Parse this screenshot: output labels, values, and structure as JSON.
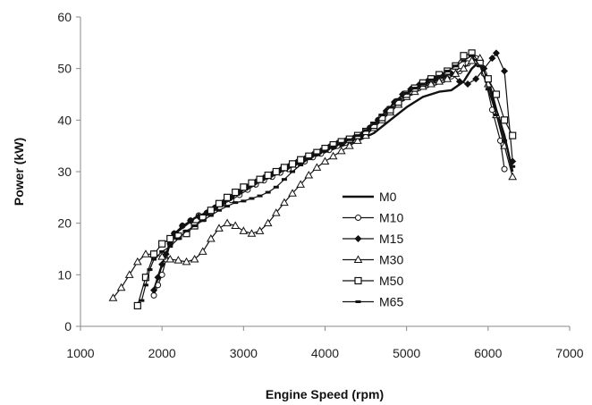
{
  "chart_data": {
    "type": "line",
    "title": "",
    "xlabel": "Engine Speed (rpm)",
    "ylabel": "Power  (kW)",
    "xlim": [
      1000,
      7000
    ],
    "ylim": [
      0,
      60
    ],
    "xticks": [
      1000,
      2000,
      3000,
      4000,
      5000,
      6000,
      7000
    ],
    "yticks": [
      0,
      10,
      20,
      30,
      40,
      50,
      60
    ],
    "grid": false,
    "legend_position": "center",
    "series": [
      {
        "name": "M0",
        "marker": "none",
        "points": [
          [
            1900,
            7
          ],
          [
            2000,
            12
          ],
          [
            2100,
            16
          ],
          [
            2200,
            18.5
          ],
          [
            2400,
            21
          ],
          [
            2600,
            22.5
          ],
          [
            2800,
            24.5
          ],
          [
            3000,
            26.5
          ],
          [
            3200,
            28
          ],
          [
            3400,
            29.5
          ],
          [
            3600,
            31
          ],
          [
            3800,
            32.5
          ],
          [
            4000,
            33.8
          ],
          [
            4200,
            35
          ],
          [
            4400,
            36
          ],
          [
            4600,
            37.5
          ],
          [
            4800,
            40
          ],
          [
            5000,
            42.5
          ],
          [
            5200,
            44.5
          ],
          [
            5400,
            45.5
          ],
          [
            5550,
            45.8
          ],
          [
            5700,
            47.5
          ],
          [
            5800,
            50
          ],
          [
            5900,
            51.5
          ],
          [
            6000,
            48
          ],
          [
            6100,
            42
          ],
          [
            6200,
            37
          ],
          [
            6300,
            30
          ]
        ]
      },
      {
        "name": "M10",
        "marker": "circle",
        "points": [
          [
            1900,
            6
          ],
          [
            1950,
            8
          ],
          [
            2000,
            10
          ],
          [
            2050,
            13
          ],
          [
            2100,
            16
          ],
          [
            2150,
            18
          ],
          [
            2250,
            19.5
          ],
          [
            2350,
            20.5
          ],
          [
            2450,
            21.5
          ],
          [
            2550,
            22
          ],
          [
            2650,
            23
          ],
          [
            2750,
            23.8
          ],
          [
            2850,
            24.5
          ],
          [
            2950,
            25.5
          ],
          [
            3050,
            26.5
          ],
          [
            3150,
            27.5
          ],
          [
            3250,
            28.3
          ],
          [
            3350,
            29
          ],
          [
            3450,
            29.8
          ],
          [
            3550,
            30.5
          ],
          [
            3650,
            31.3
          ],
          [
            3750,
            32
          ],
          [
            3850,
            32.8
          ],
          [
            3950,
            33.5
          ],
          [
            4050,
            34.2
          ],
          [
            4150,
            35
          ],
          [
            4250,
            35.6
          ],
          [
            4350,
            36.2
          ],
          [
            4450,
            37
          ],
          [
            4550,
            38.5
          ],
          [
            4650,
            40
          ],
          [
            4750,
            41.5
          ],
          [
            4850,
            43
          ],
          [
            4950,
            44.2
          ],
          [
            5050,
            45.3
          ],
          [
            5150,
            46.2
          ],
          [
            5250,
            46.8
          ],
          [
            5350,
            47.3
          ],
          [
            5450,
            47.8
          ],
          [
            5550,
            48.5
          ],
          [
            5650,
            49.5
          ],
          [
            5750,
            51
          ],
          [
            5850,
            52
          ],
          [
            5950,
            49
          ],
          [
            6050,
            42
          ],
          [
            6150,
            36
          ],
          [
            6200,
            30.5
          ]
        ]
      },
      {
        "name": "M15",
        "marker": "diamond",
        "points": [
          [
            1900,
            7
          ],
          [
            1950,
            9.5
          ],
          [
            2000,
            12
          ],
          [
            2050,
            14
          ],
          [
            2100,
            16
          ],
          [
            2150,
            18
          ],
          [
            2250,
            19.5
          ],
          [
            2350,
            20.5
          ],
          [
            2450,
            21.3
          ],
          [
            2550,
            22
          ],
          [
            2650,
            23
          ],
          [
            2750,
            24
          ],
          [
            2850,
            25
          ],
          [
            2950,
            26
          ],
          [
            3050,
            27
          ],
          [
            3150,
            28
          ],
          [
            3250,
            28.8
          ],
          [
            3350,
            29.5
          ],
          [
            3450,
            30.3
          ],
          [
            3550,
            31
          ],
          [
            3650,
            31.8
          ],
          [
            3750,
            32.5
          ],
          [
            3850,
            33.3
          ],
          [
            3950,
            34
          ],
          [
            4050,
            34.8
          ],
          [
            4150,
            35.5
          ],
          [
            4250,
            36
          ],
          [
            4350,
            36.5
          ],
          [
            4450,
            37.2
          ],
          [
            4550,
            38.5
          ],
          [
            4650,
            40
          ],
          [
            4750,
            41.8
          ],
          [
            4850,
            43.5
          ],
          [
            4950,
            45
          ],
          [
            5050,
            46
          ],
          [
            5150,
            46.8
          ],
          [
            5250,
            47.5
          ],
          [
            5350,
            48
          ],
          [
            5450,
            48.5
          ],
          [
            5550,
            49
          ],
          [
            5650,
            47.5
          ],
          [
            5750,
            47
          ],
          [
            5850,
            48
          ],
          [
            5950,
            50
          ],
          [
            6050,
            52
          ],
          [
            6100,
            53
          ],
          [
            6200,
            49.5
          ],
          [
            6300,
            32
          ]
        ]
      },
      {
        "name": "M30",
        "marker": "triangle",
        "points": [
          [
            1400,
            5.5
          ],
          [
            1500,
            7.5
          ],
          [
            1600,
            10
          ],
          [
            1700,
            12.5
          ],
          [
            1800,
            14
          ],
          [
            1900,
            14
          ],
          [
            2000,
            13.5
          ],
          [
            2100,
            13
          ],
          [
            2200,
            12.8
          ],
          [
            2300,
            12.5
          ],
          [
            2400,
            13
          ],
          [
            2500,
            14.5
          ],
          [
            2600,
            17
          ],
          [
            2700,
            19
          ],
          [
            2800,
            20
          ],
          [
            2900,
            19.5
          ],
          [
            3000,
            18.5
          ],
          [
            3100,
            18
          ],
          [
            3200,
            18.5
          ],
          [
            3300,
            20
          ],
          [
            3400,
            22
          ],
          [
            3500,
            24
          ],
          [
            3600,
            25.8
          ],
          [
            3700,
            27.5
          ],
          [
            3800,
            29.3
          ],
          [
            3900,
            30.8
          ],
          [
            4000,
            32
          ],
          [
            4100,
            33
          ],
          [
            4200,
            34
          ],
          [
            4300,
            35
          ],
          [
            4400,
            36
          ],
          [
            4500,
            37
          ],
          [
            4600,
            38.5
          ],
          [
            4700,
            40
          ],
          [
            4800,
            41.5
          ],
          [
            4900,
            43
          ],
          [
            5000,
            44.5
          ],
          [
            5100,
            45.5
          ],
          [
            5200,
            46.5
          ],
          [
            5300,
            47
          ],
          [
            5400,
            47.5
          ],
          [
            5500,
            48
          ],
          [
            5600,
            49
          ],
          [
            5700,
            50
          ],
          [
            5800,
            51.5
          ],
          [
            5900,
            52
          ],
          [
            6000,
            47
          ],
          [
            6100,
            41
          ],
          [
            6200,
            35
          ],
          [
            6300,
            29
          ]
        ]
      },
      {
        "name": "M50",
        "marker": "square",
        "points": [
          [
            1700,
            4
          ],
          [
            1800,
            9.5
          ],
          [
            1900,
            14
          ],
          [
            2000,
            16
          ],
          [
            2100,
            17
          ],
          [
            2200,
            17.5
          ],
          [
            2300,
            18
          ],
          [
            2400,
            19.5
          ],
          [
            2500,
            21
          ],
          [
            2600,
            22.5
          ],
          [
            2700,
            23.8
          ],
          [
            2800,
            25
          ],
          [
            2900,
            26
          ],
          [
            3000,
            27
          ],
          [
            3100,
            27.8
          ],
          [
            3200,
            28.5
          ],
          [
            3300,
            29.3
          ],
          [
            3400,
            30
          ],
          [
            3500,
            30.8
          ],
          [
            3600,
            31.5
          ],
          [
            3700,
            32.3
          ],
          [
            3800,
            33
          ],
          [
            3900,
            33.7
          ],
          [
            4000,
            34.5
          ],
          [
            4100,
            35.2
          ],
          [
            4200,
            35.8
          ],
          [
            4300,
            36.3
          ],
          [
            4400,
            37
          ],
          [
            4500,
            37.8
          ],
          [
            4600,
            39
          ],
          [
            4700,
            40.5
          ],
          [
            4800,
            42
          ],
          [
            4900,
            43.5
          ],
          [
            5000,
            45
          ],
          [
            5100,
            46.2
          ],
          [
            5200,
            47.2
          ],
          [
            5300,
            48
          ],
          [
            5400,
            48.8
          ],
          [
            5500,
            49.5
          ],
          [
            5600,
            50.5
          ],
          [
            5700,
            52.5
          ],
          [
            5800,
            53
          ],
          [
            5900,
            51
          ],
          [
            6000,
            48
          ],
          [
            6100,
            45
          ],
          [
            6200,
            40
          ],
          [
            6300,
            37
          ]
        ]
      },
      {
        "name": "M65",
        "marker": "dash",
        "points": [
          [
            1750,
            5
          ],
          [
            1800,
            8
          ],
          [
            1850,
            11
          ],
          [
            1900,
            13
          ],
          [
            2000,
            14.5
          ],
          [
            2100,
            15.5
          ],
          [
            2200,
            17
          ],
          [
            2300,
            18.5
          ],
          [
            2400,
            19.5
          ],
          [
            2500,
            20.5
          ],
          [
            2600,
            21.5
          ],
          [
            2700,
            22.5
          ],
          [
            2800,
            23.3
          ],
          [
            2900,
            24
          ],
          [
            3000,
            24.3
          ],
          [
            3100,
            24.8
          ],
          [
            3200,
            25.3
          ],
          [
            3300,
            26
          ],
          [
            3400,
            27
          ],
          [
            3500,
            28.5
          ],
          [
            3600,
            30
          ],
          [
            3700,
            31.3
          ],
          [
            3800,
            32.5
          ],
          [
            3900,
            33.3
          ],
          [
            4000,
            34
          ],
          [
            4100,
            34.8
          ],
          [
            4200,
            35.5
          ],
          [
            4300,
            36.2
          ],
          [
            4400,
            37
          ],
          [
            4500,
            38
          ],
          [
            4600,
            39.3
          ],
          [
            4700,
            41
          ],
          [
            4800,
            42.5
          ],
          [
            4900,
            44
          ],
          [
            5000,
            45.2
          ],
          [
            5100,
            46.2
          ],
          [
            5200,
            47
          ],
          [
            5300,
            47.8
          ],
          [
            5400,
            48.5
          ],
          [
            5500,
            49.5
          ],
          [
            5600,
            50.5
          ],
          [
            5700,
            51.5
          ],
          [
            5800,
            52.5
          ],
          [
            5900,
            50.5
          ],
          [
            6000,
            46
          ],
          [
            6100,
            41
          ],
          [
            6200,
            36
          ],
          [
            6300,
            31
          ]
        ]
      }
    ]
  }
}
